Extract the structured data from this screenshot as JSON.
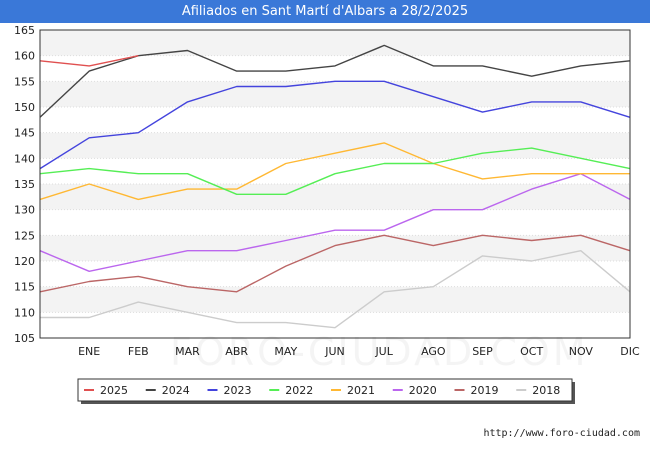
{
  "title": "Afiliados en Sant Martí d'Albars a 28/2/2025",
  "source": "http://www.foro-ciudad.com",
  "watermark": "FORO-CIUDAD.COM",
  "chart_data": {
    "type": "line",
    "categories": [
      "",
      "ENE",
      "FEB",
      "MAR",
      "ABR",
      "MAY",
      "JUN",
      "JUL",
      "AGO",
      "SEP",
      "OCT",
      "NOV",
      "DIC"
    ],
    "ylim": [
      105,
      165
    ],
    "yticks": [
      105,
      110,
      115,
      120,
      125,
      130,
      135,
      140,
      145,
      150,
      155,
      160,
      165
    ],
    "grid": true,
    "legend_position": "bottom",
    "series": [
      {
        "name": "2025",
        "color": "#e05050",
        "values": [
          159,
          158,
          160,
          null,
          null,
          null,
          null,
          null,
          null,
          null,
          null,
          null,
          null
        ]
      },
      {
        "name": "2024",
        "color": "#444444",
        "values": [
          148,
          157,
          160,
          161,
          157,
          157,
          158,
          162,
          158,
          158,
          156,
          158,
          159
        ]
      },
      {
        "name": "2023",
        "color": "#4444dd",
        "values": [
          138,
          144,
          145,
          151,
          154,
          154,
          155,
          155,
          152,
          149,
          151,
          151,
          148
        ]
      },
      {
        "name": "2022",
        "color": "#55ee55",
        "values": [
          137,
          138,
          137,
          137,
          133,
          133,
          137,
          139,
          139,
          141,
          142,
          140,
          138
        ]
      },
      {
        "name": "2021",
        "color": "#ffb833",
        "values": [
          132,
          135,
          132,
          134,
          134,
          139,
          141,
          143,
          139,
          136,
          137,
          137,
          137
        ]
      },
      {
        "name": "2020",
        "color": "#bb66ee",
        "values": [
          122,
          118,
          120,
          122,
          122,
          124,
          126,
          126,
          130,
          130,
          134,
          137,
          132
        ]
      },
      {
        "name": "2019",
        "color": "#bb6666",
        "values": [
          114,
          116,
          117,
          115,
          114,
          119,
          123,
          125,
          123,
          125,
          124,
          125,
          122
        ]
      },
      {
        "name": "2018",
        "color": "#cccccc",
        "values": [
          109,
          109,
          112,
          110,
          108,
          108,
          107,
          114,
          115,
          121,
          120,
          122,
          114
        ]
      }
    ]
  }
}
